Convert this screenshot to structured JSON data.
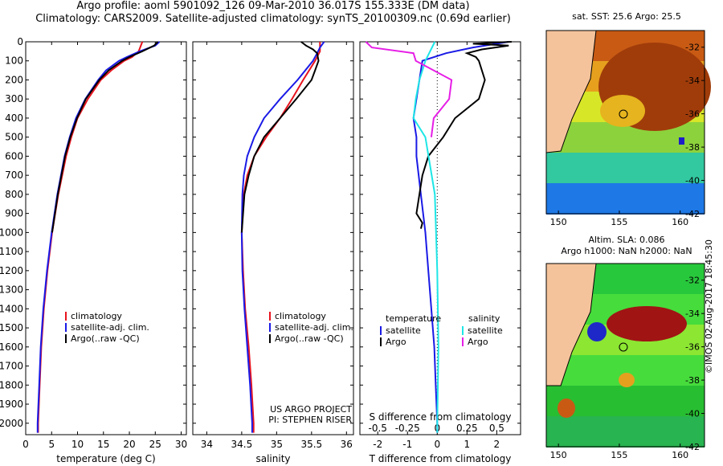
{
  "header": {
    "line1": "Argo profile: aoml 5901092_126 09-Mar-2010 36.017S 155.333E (DM data)",
    "line2": "Climatology: CARS2009. Satellite-adjusted climatology: synTS_20100309.nc (0.69d earlier)"
  },
  "colors": {
    "climatology": "#e8141e",
    "satellite": "#1a1ae6",
    "argo": "#000000",
    "salinity_sat": "#1ee6e6",
    "salinity_argo": "#e61ee6"
  },
  "depth_axis": {
    "ticks": [
      0,
      100,
      200,
      300,
      400,
      500,
      600,
      700,
      800,
      900,
      1000,
      1100,
      1200,
      1300,
      1400,
      1500,
      1600,
      1700,
      1800,
      1900,
      2000
    ],
    "range": [
      0,
      2060
    ]
  },
  "chart_data": [
    {
      "type": "line",
      "id": "temperature",
      "xlabel": "temperature (deg C)",
      "xlim": [
        0,
        31
      ],
      "xticks": [
        0,
        5,
        10,
        15,
        20,
        25,
        30
      ],
      "legend": [
        "climatology",
        "satellite-adj. clim.",
        "Argo(..raw -QC)"
      ],
      "series": [
        {
          "name": "climatology",
          "depth": [
            0,
            50,
            80,
            100,
            150,
            200,
            300,
            400,
            500,
            600,
            800,
            1000,
            1200,
            1400,
            1600,
            1800,
            2000,
            2050
          ],
          "values": [
            22.5,
            21.8,
            20.5,
            19,
            16.5,
            14.5,
            12,
            10,
            8.8,
            7.8,
            6.3,
            5.1,
            4.2,
            3.5,
            3.0,
            2.7,
            2.4,
            2.4
          ]
        },
        {
          "name": "satellite-adj. clim.",
          "depth": [
            0,
            20,
            50,
            80,
            100,
            150,
            200,
            300,
            400,
            500,
            600,
            800,
            1000,
            1200,
            1400,
            1600,
            1800,
            2000,
            2050
          ],
          "values": [
            25.8,
            25.0,
            22,
            19.5,
            18,
            15.5,
            14,
            11.5,
            9.7,
            8.5,
            7.5,
            6.1,
            5.0,
            4.1,
            3.4,
            2.9,
            2.6,
            2.3,
            2.3
          ]
        },
        {
          "name": "Argo(..raw -QC)",
          "depth": [
            0,
            20,
            50,
            80,
            100,
            150,
            200,
            300,
            400,
            500,
            600,
            800,
            1000
          ],
          "values": [
            25.5,
            24.8,
            22.5,
            20,
            18.6,
            16,
            14.2,
            11.6,
            9.9,
            8.6,
            7.6,
            6.2,
            5.1
          ]
        }
      ]
    },
    {
      "type": "line",
      "id": "salinity",
      "xlabel": "salinity",
      "xlim": [
        33.8,
        36.1
      ],
      "xticks": [
        34,
        34.5,
        35,
        35.5,
        36
      ],
      "legend": [
        "climatology",
        "satellite-adj. clim.",
        "Argo(..raw -QC)"
      ],
      "credit": [
        "US ARGO PROJECT",
        "PI: STEPHEN RISER"
      ],
      "series": [
        {
          "name": "climatology",
          "depth": [
            0,
            50,
            100,
            200,
            300,
            400,
            500,
            600,
            700,
            800,
            1000,
            1200,
            1400,
            1600,
            1800,
            2000,
            2050
          ],
          "values": [
            35.62,
            35.62,
            35.55,
            35.38,
            35.22,
            35.05,
            34.85,
            34.68,
            34.58,
            34.53,
            34.5,
            34.52,
            34.55,
            34.6,
            34.64,
            34.67,
            34.67
          ]
        },
        {
          "name": "satellite-adj. clim.",
          "depth": [
            0,
            30,
            60,
            100,
            200,
            300,
            400,
            500,
            600,
            700,
            800,
            1000,
            1200,
            1400,
            1600,
            1800,
            2000,
            2050
          ],
          "values": [
            35.68,
            35.62,
            35.58,
            35.52,
            35.3,
            35.05,
            34.82,
            34.68,
            34.58,
            34.53,
            34.51,
            34.5,
            34.51,
            34.54,
            34.58,
            34.62,
            34.65,
            34.65
          ]
        },
        {
          "name": "Argo(..raw -QC)",
          "depth": [
            0,
            20,
            40,
            60,
            100,
            150,
            200,
            300,
            400,
            500,
            600,
            700,
            800,
            1000
          ],
          "values": [
            35.35,
            35.42,
            35.52,
            35.58,
            35.6,
            35.55,
            35.5,
            35.28,
            35.05,
            34.82,
            34.68,
            34.6,
            34.54,
            34.5
          ]
        }
      ]
    },
    {
      "type": "line",
      "id": "differences",
      "xlabel": "T difference from climatology",
      "xlim": [
        -2.6,
        2.8
      ],
      "xticks": [
        -2,
        -1,
        0,
        1,
        2
      ],
      "x2label": "S difference from climatology",
      "x2ticks": [
        -0.5,
        -0.25,
        0,
        0.25,
        0.5
      ],
      "legend_headers": [
        "temperature",
        "salinity"
      ],
      "legend": [
        "satellite",
        "Argo",
        "satellite",
        "Argo"
      ],
      "series": [
        {
          "name": "temperature satellite",
          "depth": [
            0,
            30,
            60,
            100,
            200,
            300,
            400,
            500,
            600,
            800,
            1000,
            1200,
            1400,
            1600,
            1800,
            2000,
            2050
          ],
          "values": [
            2.4,
            1.2,
            0.3,
            -0.5,
            -0.6,
            -0.7,
            -0.8,
            -0.7,
            -0.7,
            -0.55,
            -0.4,
            -0.3,
            -0.2,
            -0.1,
            -0.05,
            0,
            0
          ]
        },
        {
          "name": "temperature Argo",
          "depth": [
            0,
            10,
            20,
            40,
            60,
            80,
            100,
            200,
            300,
            400,
            500,
            600,
            700,
            800,
            900,
            950,
            980
          ],
          "values": [
            2.5,
            1.2,
            2.4,
            1.5,
            1,
            1.3,
            1.4,
            1.6,
            1.4,
            0.6,
            0.2,
            -0.3,
            -0.5,
            -0.6,
            -0.7,
            -0.5,
            -0.55
          ]
        },
        {
          "name": "salinity satellite",
          "depth": [
            0,
            100,
            200,
            300,
            400,
            500,
            800,
            1200,
            1600,
            2000,
            2050
          ],
          "values": [
            -0.02,
            -0.1,
            -0.15,
            -0.18,
            -0.2,
            -0.1,
            -0.02,
            0,
            0.01,
            0,
            0
          ]
        },
        {
          "name": "salinity Argo",
          "depth": [
            0,
            30,
            60,
            100,
            200,
            300,
            400,
            500
          ],
          "values": [
            -0.6,
            -0.55,
            -0.2,
            -0.18,
            0.12,
            0.1,
            -0.03,
            -0.05
          ]
        }
      ]
    }
  ],
  "map_sst": {
    "title": "sat. SST: 25.6 Argo: 25.5",
    "lon": [
      150,
      155,
      160
    ],
    "lat": [
      -32,
      -34,
      -36,
      -38,
      -40,
      -42
    ]
  },
  "map_sla": {
    "title1": "Altim. SLA: 0.086",
    "title2": "Argo h1000: NaN h2000: NaN",
    "lon": [
      150,
      155,
      160
    ],
    "lat": [
      -32,
      -34,
      -36,
      -38,
      -40,
      -42
    ]
  },
  "credit_line": "©IMOS 02-Aug-2017 18:45:30"
}
